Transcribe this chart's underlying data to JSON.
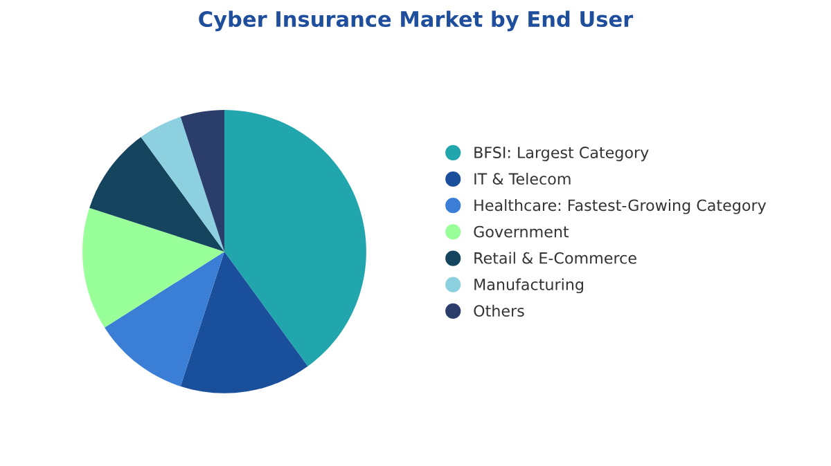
{
  "chart_data": {
    "type": "pie",
    "title": "Cyber Insurance Market by End User",
    "categories": [
      "BFSI: Largest Category",
      "IT & Telecom",
      "Healthcare: Fastest-Growing Category",
      "Government",
      "Retail & E-Commerce",
      "Manufacturing",
      "Others"
    ],
    "values": [
      40,
      15,
      11,
      14,
      10,
      5,
      5
    ],
    "colors": [
      "#22a6ad",
      "#1a4f9c",
      "#3a7fd5",
      "#99ff99",
      "#15445f",
      "#8dd0e0",
      "#2b3d6b"
    ],
    "legend": "right"
  }
}
